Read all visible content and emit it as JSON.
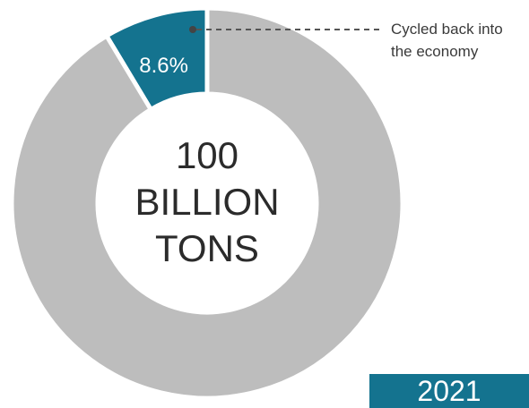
{
  "chart_data": {
    "type": "pie",
    "donut": true,
    "slices": [
      {
        "label": "Cycled back into the economy",
        "value": 8.6,
        "value_label": "8.6%",
        "color": "#14738f"
      },
      {
        "label": "",
        "value": 91.4,
        "value_label": "",
        "color": "#bdbdbd"
      }
    ],
    "center_label": [
      "100",
      "BILLION",
      "TONS"
    ],
    "annotation": [
      "Cycled back into",
      "the economy"
    ],
    "year": "2021",
    "start_angle_deg": 0,
    "direction": "counterclockwise"
  },
  "colors": {
    "highlight": "#14738f",
    "rest": "#bdbdbd",
    "leader": "#555555"
  }
}
